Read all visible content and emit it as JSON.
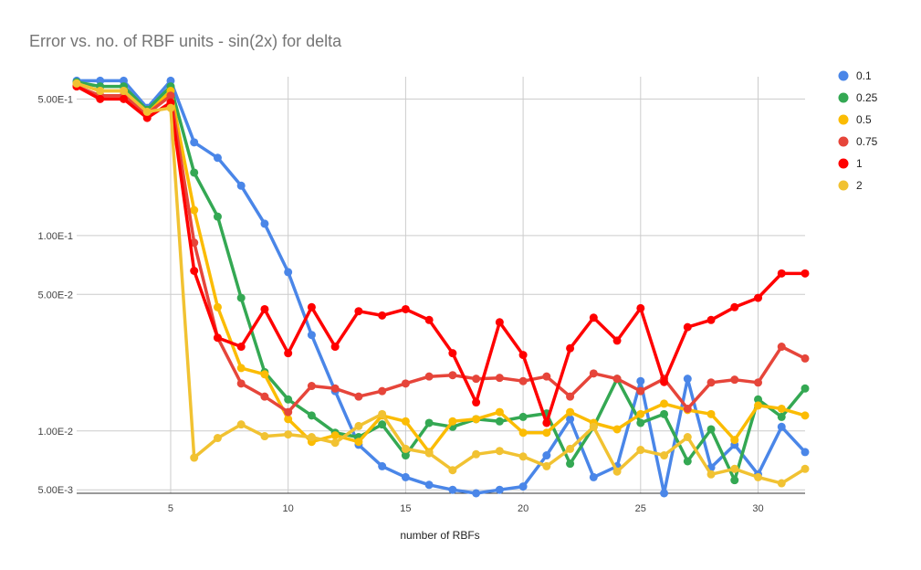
{
  "chart_data": {
    "type": "line",
    "title": "Error vs. no. of RBF units - sin(2x) for delta",
    "xlabel": "number of RBFs",
    "ylabel": "",
    "y_scale": "log",
    "xlim": [
      1,
      32
    ],
    "ylim": [
      0.0048,
      0.65
    ],
    "x_ticks": [
      5,
      10,
      15,
      20,
      25,
      30
    ],
    "y_ticks": [
      {
        "value": 0.5,
        "label": "5.00E-1"
      },
      {
        "value": 0.1,
        "label": "1.00E-1"
      },
      {
        "value": 0.05,
        "label": "5.00E-2"
      },
      {
        "value": 0.01,
        "label": "1.00E-2"
      },
      {
        "value": 0.005,
        "label": "5.00E-3"
      }
    ],
    "grid": true,
    "legend_position": "right",
    "x": [
      1,
      2,
      3,
      4,
      5,
      6,
      7,
      8,
      9,
      10,
      11,
      12,
      13,
      14,
      15,
      16,
      17,
      18,
      19,
      20,
      21,
      22,
      23,
      24,
      25,
      26,
      27,
      28,
      29,
      30,
      31,
      32
    ],
    "series": [
      {
        "name": "0.1",
        "color": "#4a86e8",
        "values": [
          0.62,
          0.62,
          0.62,
          0.45,
          0.62,
          0.3,
          0.25,
          0.18,
          0.115,
          0.065,
          0.031,
          0.016,
          0.0085,
          0.0066,
          0.0058,
          0.0053,
          0.005,
          0.0048,
          0.005,
          0.0052,
          0.0075,
          0.0115,
          0.0058,
          0.0066,
          0.018,
          0.0048,
          0.0185,
          0.0065,
          0.0085,
          0.006,
          0.0105,
          0.0078
        ]
      },
      {
        "name": "0.25",
        "color": "#34a853",
        "values": [
          0.61,
          0.58,
          0.58,
          0.44,
          0.58,
          0.21,
          0.125,
          0.048,
          0.02,
          0.0145,
          0.012,
          0.0098,
          0.0093,
          0.0108,
          0.0075,
          0.011,
          0.0105,
          0.0115,
          0.0112,
          0.0118,
          0.0123,
          0.0068,
          0.0105,
          0.0185,
          0.011,
          0.0122,
          0.007,
          0.0102,
          0.0056,
          0.0145,
          0.0118,
          0.0165
        ]
      },
      {
        "name": "0.5",
        "color": "#fbbc04",
        "values": [
          0.6,
          0.55,
          0.55,
          0.42,
          0.55,
          0.135,
          0.043,
          0.021,
          0.0195,
          0.0115,
          0.0088,
          0.0095,
          0.0088,
          0.012,
          0.0112,
          0.0078,
          0.0112,
          0.0115,
          0.0125,
          0.0098,
          0.0098,
          0.0125,
          0.011,
          0.0102,
          0.0122,
          0.0138,
          0.0128,
          0.0122,
          0.009,
          0.0135,
          0.013,
          0.012
        ]
      },
      {
        "name": "0.75",
        "color": "#e6453a",
        "values": [
          0.58,
          0.52,
          0.52,
          0.42,
          0.52,
          0.092,
          0.03,
          0.0175,
          0.015,
          0.0125,
          0.017,
          0.0165,
          0.015,
          0.016,
          0.0175,
          0.019,
          0.0193,
          0.0185,
          0.0187,
          0.018,
          0.019,
          0.015,
          0.0197,
          0.0185,
          0.016,
          0.0185,
          0.013,
          0.0177,
          0.0183,
          0.0177,
          0.027,
          0.0235
        ]
      },
      {
        "name": "1",
        "color": "#ff0000",
        "values": [
          0.58,
          0.5,
          0.5,
          0.4,
          0.48,
          0.066,
          0.03,
          0.027,
          0.042,
          0.025,
          0.043,
          0.027,
          0.041,
          0.039,
          0.042,
          0.037,
          0.025,
          0.014,
          0.036,
          0.0245,
          0.011,
          0.0265,
          0.038,
          0.029,
          0.0425,
          0.0178,
          0.034,
          0.037,
          0.043,
          0.048,
          0.064,
          0.064
        ]
      },
      {
        "name": "2",
        "color": "#f1c232",
        "values": [
          0.6,
          0.55,
          0.55,
          0.43,
          0.45,
          0.0073,
          0.0092,
          0.0108,
          0.0094,
          0.0096,
          0.0093,
          0.0087,
          0.0106,
          0.0122,
          0.0081,
          0.0077,
          0.0063,
          0.0076,
          0.0079,
          0.0074,
          0.0066,
          0.0081,
          0.0105,
          0.0062,
          0.008,
          0.0075,
          0.0093,
          0.006,
          0.0064,
          0.0058,
          0.0054,
          0.0064
        ]
      }
    ]
  }
}
